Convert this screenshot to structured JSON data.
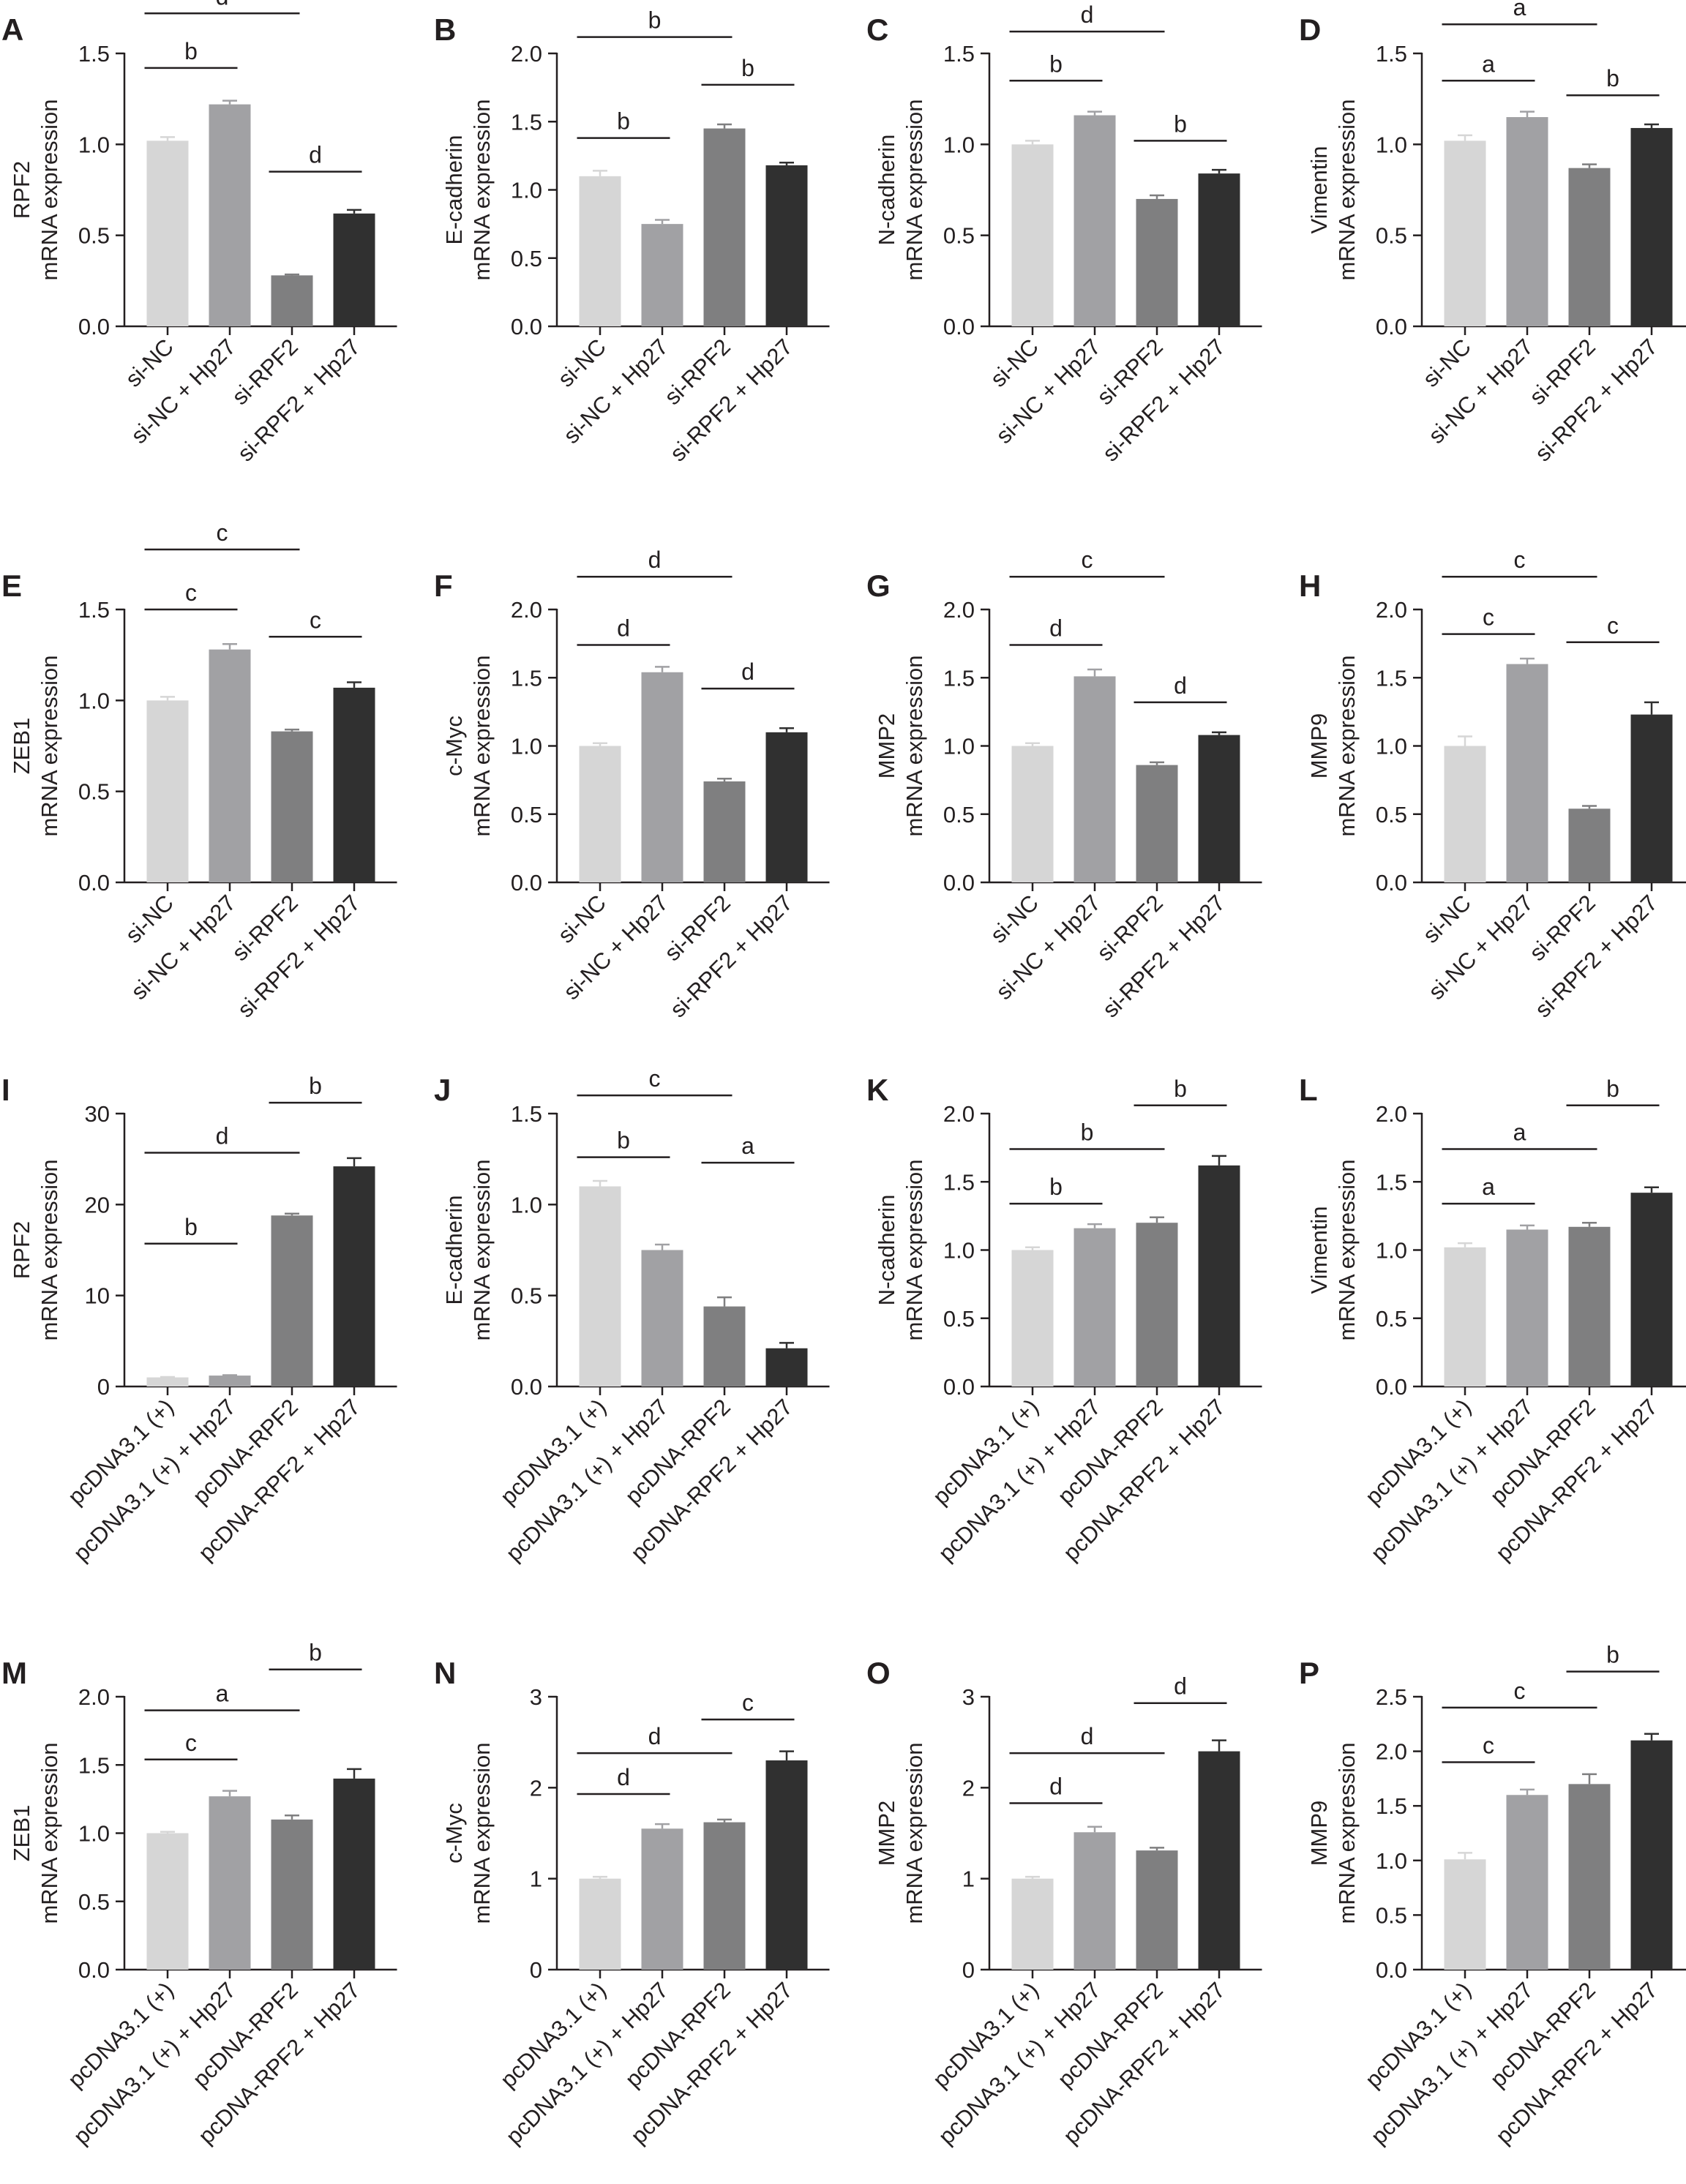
{
  "figure": {
    "colors": [
      "#d6d6d6",
      "#a1a1a4",
      "#7f7f80",
      "#303030"
    ],
    "axis_color": "#231f20"
  },
  "chart_data": [
    {
      "panel": "A",
      "type": "bar",
      "ylabel": [
        "RPF2",
        "mRNA expression"
      ],
      "ylim": [
        0,
        1.5
      ],
      "ticks": [
        0,
        0.5,
        1,
        1.5
      ],
      "tick_labels": [
        "0.0",
        "0.5",
        "1.0",
        "1.5"
      ],
      "categories": [
        "si-NC",
        "si-NC + Hp27",
        "si-RPF2",
        "si-RPF2 + Hp27"
      ],
      "values": [
        1.02,
        1.22,
        0.28,
        0.62
      ],
      "errors": [
        0.02,
        0.02,
        0.005,
        0.02
      ],
      "significance": [
        {
          "from": 0,
          "to": 1,
          "label": "b",
          "y": 1.42
        },
        {
          "from": 0,
          "to": 2,
          "label": "d",
          "y": 1.72
        },
        {
          "from": 2,
          "to": 3,
          "label": "d",
          "y": 0.85
        }
      ]
    },
    {
      "panel": "B",
      "type": "bar",
      "ylabel": [
        "E-cadherin",
        "mRNA expression"
      ],
      "ylim": [
        0,
        2.0
      ],
      "ticks": [
        0,
        0.5,
        1,
        1.5,
        2
      ],
      "tick_labels": [
        "0.0",
        "0.5",
        "1.0",
        "1.5",
        "2.0"
      ],
      "categories": [
        "si-NC",
        "si-NC + Hp27",
        "si-RPF2",
        "si-RPF2 + Hp27"
      ],
      "values": [
        1.1,
        0.75,
        1.45,
        1.18
      ],
      "errors": [
        0.04,
        0.03,
        0.03,
        0.02
      ],
      "significance": [
        {
          "from": 0,
          "to": 1,
          "label": "b",
          "y": 1.38
        },
        {
          "from": 0,
          "to": 2,
          "label": "b",
          "y": 2.12
        },
        {
          "from": 2,
          "to": 3,
          "label": "b",
          "y": 1.77
        }
      ]
    },
    {
      "panel": "C",
      "type": "bar",
      "ylabel": [
        "N-cadherin",
        "mRNA expression"
      ],
      "ylim": [
        0,
        1.5
      ],
      "ticks": [
        0,
        0.5,
        1,
        1.5
      ],
      "tick_labels": [
        "0.0",
        "0.5",
        "1.0",
        "1.5"
      ],
      "categories": [
        "si-NC",
        "si-NC + Hp27",
        "si-RPF2",
        "si-RPF2 + Hp27"
      ],
      "values": [
        1.0,
        1.16,
        0.7,
        0.84
      ],
      "errors": [
        0.02,
        0.02,
        0.02,
        0.02
      ],
      "significance": [
        {
          "from": 0,
          "to": 1,
          "label": "b",
          "y": 1.35
        },
        {
          "from": 0,
          "to": 2,
          "label": "d",
          "y": 1.62
        },
        {
          "from": 2,
          "to": 3,
          "label": "b",
          "y": 1.02
        }
      ]
    },
    {
      "panel": "D",
      "type": "bar",
      "ylabel": [
        "Vimentin",
        "mRNA expression"
      ],
      "ylim": [
        0,
        1.5
      ],
      "ticks": [
        0,
        0.5,
        1,
        1.5
      ],
      "tick_labels": [
        "0.0",
        "0.5",
        "1.0",
        "1.5"
      ],
      "categories": [
        "si-NC",
        "si-NC + Hp27",
        "si-RPF2",
        "si-RPF2 + Hp27"
      ],
      "values": [
        1.02,
        1.15,
        0.87,
        1.09
      ],
      "errors": [
        0.03,
        0.03,
        0.02,
        0.02
      ],
      "significance": [
        {
          "from": 0,
          "to": 1,
          "label": "a",
          "y": 1.35
        },
        {
          "from": 0,
          "to": 2,
          "label": "a",
          "y": 1.66
        },
        {
          "from": 2,
          "to": 3,
          "label": "b",
          "y": 1.27
        }
      ]
    },
    {
      "panel": "E",
      "type": "bar",
      "ylabel": [
        "ZEB1",
        "mRNA expression"
      ],
      "ylim": [
        0,
        1.5
      ],
      "ticks": [
        0,
        0.5,
        1,
        1.5
      ],
      "tick_labels": [
        "0.0",
        "0.5",
        "1.0",
        "1.5"
      ],
      "categories": [
        "si-NC",
        "si-NC + Hp27",
        "si-RPF2",
        "si-RPF2 + Hp27"
      ],
      "values": [
        1.0,
        1.28,
        0.83,
        1.07
      ],
      "errors": [
        0.02,
        0.03,
        0.01,
        0.03
      ],
      "significance": [
        {
          "from": 0,
          "to": 1,
          "label": "c",
          "y": 1.5
        },
        {
          "from": 0,
          "to": 2,
          "label": "c",
          "y": 1.83
        },
        {
          "from": 2,
          "to": 3,
          "label": "c",
          "y": 1.35
        }
      ]
    },
    {
      "panel": "F",
      "type": "bar",
      "ylabel": [
        "c-Myc",
        "mRNA expression"
      ],
      "ylim": [
        0,
        2.0
      ],
      "ticks": [
        0,
        0.5,
        1,
        1.5,
        2
      ],
      "tick_labels": [
        "0.0",
        "0.5",
        "1.0",
        "1.5",
        "2.0"
      ],
      "categories": [
        "si-NC",
        "si-NC + Hp27",
        "si-RPF2",
        "si-RPF2 + Hp27"
      ],
      "values": [
        1.0,
        1.54,
        0.74,
        1.1
      ],
      "errors": [
        0.02,
        0.04,
        0.02,
        0.03
      ],
      "significance": [
        {
          "from": 0,
          "to": 1,
          "label": "d",
          "y": 1.74
        },
        {
          "from": 0,
          "to": 2,
          "label": "d",
          "y": 2.24
        },
        {
          "from": 2,
          "to": 3,
          "label": "d",
          "y": 1.42
        }
      ]
    },
    {
      "panel": "G",
      "type": "bar",
      "ylabel": [
        "MMP2",
        "mRNA expression"
      ],
      "ylim": [
        0,
        2.0
      ],
      "ticks": [
        0,
        0.5,
        1,
        1.5,
        2
      ],
      "tick_labels": [
        "0.0",
        "0.5",
        "1.0",
        "1.5",
        "2.0"
      ],
      "categories": [
        "si-NC",
        "si-NC + Hp27",
        "si-RPF2",
        "si-RPF2 + Hp27"
      ],
      "values": [
        1.0,
        1.51,
        0.86,
        1.08
      ],
      "errors": [
        0.02,
        0.05,
        0.02,
        0.02
      ],
      "significance": [
        {
          "from": 0,
          "to": 1,
          "label": "d",
          "y": 1.74
        },
        {
          "from": 0,
          "to": 2,
          "label": "c",
          "y": 2.24
        },
        {
          "from": 2,
          "to": 3,
          "label": "d",
          "y": 1.32
        }
      ]
    },
    {
      "panel": "H",
      "type": "bar",
      "ylabel": [
        "MMP9",
        "mRNA expression"
      ],
      "ylim": [
        0,
        2.0
      ],
      "ticks": [
        0,
        0.5,
        1,
        1.5,
        2
      ],
      "tick_labels": [
        "0.0",
        "0.5",
        "1.0",
        "1.5",
        "2.0"
      ],
      "categories": [
        "si-NC",
        "si-NC + Hp27",
        "si-RPF2",
        "si-RPF2 + Hp27"
      ],
      "values": [
        1.0,
        1.6,
        0.54,
        1.23
      ],
      "errors": [
        0.07,
        0.04,
        0.02,
        0.09
      ],
      "significance": [
        {
          "from": 0,
          "to": 1,
          "label": "c",
          "y": 1.82
        },
        {
          "from": 0,
          "to": 2,
          "label": "c",
          "y": 2.24
        },
        {
          "from": 2,
          "to": 3,
          "label": "c",
          "y": 1.76
        }
      ]
    },
    {
      "panel": "I",
      "type": "bar",
      "ylabel": [
        "RPF2",
        "mRNA expression"
      ],
      "ylim": [
        0,
        30
      ],
      "ticks": [
        0,
        10,
        20,
        30
      ],
      "tick_labels": [
        "0",
        "10",
        "20",
        "30"
      ],
      "categories": [
        "pcDNA3.1 (+)",
        "pcDNA3.1 (+) + Hp27",
        "pcDNA-RPF2",
        "pcDNA-RPF2 + Hp27"
      ],
      "values": [
        1.0,
        1.2,
        18.8,
        24.2
      ],
      "errors": [
        0.05,
        0.05,
        0.2,
        0.9
      ],
      "significance": [
        {
          "from": 0,
          "to": 1,
          "label": "b",
          "y": 15.7
        },
        {
          "from": 0,
          "to": 2,
          "label": "d",
          "y": 25.7
        },
        {
          "from": 2,
          "to": 3,
          "label": "b",
          "y": 31.2
        }
      ]
    },
    {
      "panel": "J",
      "type": "bar",
      "ylabel": [
        "E-cadherin",
        "mRNA expression"
      ],
      "ylim": [
        0,
        1.5
      ],
      "ticks": [
        0,
        0.5,
        1,
        1.5
      ],
      "tick_labels": [
        "0.0",
        "0.5",
        "1.0",
        "1.5"
      ],
      "categories": [
        "pcDNA3.1 (+)",
        "pcDNA3.1 (+) + Hp27",
        "pcDNA-RPF2",
        "pcDNA-RPF2 + Hp27"
      ],
      "values": [
        1.1,
        0.75,
        0.44,
        0.21
      ],
      "errors": [
        0.03,
        0.03,
        0.05,
        0.03
      ],
      "significance": [
        {
          "from": 0,
          "to": 1,
          "label": "b",
          "y": 1.26
        },
        {
          "from": 0,
          "to": 2,
          "label": "c",
          "y": 1.6
        },
        {
          "from": 2,
          "to": 3,
          "label": "a",
          "y": 1.23
        }
      ]
    },
    {
      "panel": "K",
      "type": "bar",
      "ylabel": [
        "N-cadherin",
        "mRNA expression"
      ],
      "ylim": [
        0,
        2.0
      ],
      "ticks": [
        0,
        0.5,
        1,
        1.5,
        2
      ],
      "tick_labels": [
        "0.0",
        "0.5",
        "1.0",
        "1.5",
        "2.0"
      ],
      "categories": [
        "pcDNA3.1 (+)",
        "pcDNA3.1 (+) + Hp27",
        "pcDNA-RPF2",
        "pcDNA-RPF2 + Hp27"
      ],
      "values": [
        1.0,
        1.16,
        1.2,
        1.62
      ],
      "errors": [
        0.02,
        0.03,
        0.04,
        0.07
      ],
      "significance": [
        {
          "from": 0,
          "to": 1,
          "label": "b",
          "y": 1.34
        },
        {
          "from": 0,
          "to": 2,
          "label": "b",
          "y": 1.74
        },
        {
          "from": 2,
          "to": 3,
          "label": "b",
          "y": 2.06
        }
      ]
    },
    {
      "panel": "L",
      "type": "bar",
      "ylabel": [
        "Vimentin",
        "mRNA expression"
      ],
      "ylim": [
        0,
        2.0
      ],
      "ticks": [
        0,
        0.5,
        1,
        1.5,
        2
      ],
      "tick_labels": [
        "0.0",
        "0.5",
        "1.0",
        "1.5",
        "2.0"
      ],
      "categories": [
        "pcDNA3.1 (+)",
        "pcDNA3.1 (+) + Hp27",
        "pcDNA-RPF2",
        "pcDNA-RPF2 + Hp27"
      ],
      "values": [
        1.02,
        1.15,
        1.17,
        1.42
      ],
      "errors": [
        0.03,
        0.03,
        0.03,
        0.04
      ],
      "significance": [
        {
          "from": 0,
          "to": 1,
          "label": "a",
          "y": 1.34
        },
        {
          "from": 0,
          "to": 2,
          "label": "a",
          "y": 1.74
        },
        {
          "from": 2,
          "to": 3,
          "label": "b",
          "y": 2.06
        }
      ]
    },
    {
      "panel": "M",
      "type": "bar",
      "ylabel": [
        "ZEB1",
        "mRNA expression"
      ],
      "ylim": [
        0,
        2.0
      ],
      "ticks": [
        0,
        0.5,
        1,
        1.5,
        2
      ],
      "tick_labels": [
        "0.0",
        "0.5",
        "1.0",
        "1.5",
        "2.0"
      ],
      "categories": [
        "pcDNA3.1 (+)",
        "pcDNA3.1 (+) + Hp27",
        "pcDNA-RPF2",
        "pcDNA-RPF2 + Hp27"
      ],
      "values": [
        1.0,
        1.27,
        1.1,
        1.4
      ],
      "errors": [
        0.01,
        0.04,
        0.03,
        0.07
      ],
      "significance": [
        {
          "from": 0,
          "to": 1,
          "label": "c",
          "y": 1.54
        },
        {
          "from": 0,
          "to": 2,
          "label": "a",
          "y": 1.9
        },
        {
          "from": 2,
          "to": 3,
          "label": "b",
          "y": 2.2
        }
      ]
    },
    {
      "panel": "N",
      "type": "bar",
      "ylabel": [
        "c-Myc",
        "mRNA expression"
      ],
      "ylim": [
        0,
        3
      ],
      "ticks": [
        0,
        1,
        2,
        3
      ],
      "tick_labels": [
        "0",
        "1",
        "2",
        "3"
      ],
      "categories": [
        "pcDNA3.1 (+)",
        "pcDNA3.1 (+) + Hp27",
        "pcDNA-RPF2",
        "pcDNA-RPF2 + Hp27"
      ],
      "values": [
        1.0,
        1.55,
        1.62,
        2.3
      ],
      "errors": [
        0.02,
        0.05,
        0.03,
        0.1
      ],
      "significance": [
        {
          "from": 0,
          "to": 1,
          "label": "d",
          "y": 1.93
        },
        {
          "from": 0,
          "to": 2,
          "label": "d",
          "y": 2.38
        },
        {
          "from": 2,
          "to": 3,
          "label": "c",
          "y": 2.75
        }
      ]
    },
    {
      "panel": "O",
      "type": "bar",
      "ylabel": [
        "MMP2",
        "mRNA expression"
      ],
      "ylim": [
        0,
        3
      ],
      "ticks": [
        0,
        1,
        2,
        3
      ],
      "tick_labels": [
        "0",
        "1",
        "2",
        "3"
      ],
      "categories": [
        "pcDNA3.1 (+)",
        "pcDNA3.1 (+) + Hp27",
        "pcDNA-RPF2",
        "pcDNA-RPF2 + Hp27"
      ],
      "values": [
        1.0,
        1.51,
        1.31,
        2.4
      ],
      "errors": [
        0.02,
        0.06,
        0.03,
        0.12
      ],
      "significance": [
        {
          "from": 0,
          "to": 1,
          "label": "d",
          "y": 1.83
        },
        {
          "from": 0,
          "to": 2,
          "label": "d",
          "y": 2.38
        },
        {
          "from": 2,
          "to": 3,
          "label": "d",
          "y": 2.93
        }
      ]
    },
    {
      "panel": "P",
      "type": "bar",
      "ylabel": [
        "MMP9",
        "mRNA expression"
      ],
      "ylim": [
        0,
        2.5
      ],
      "ticks": [
        0,
        0.5,
        1,
        1.5,
        2,
        2.5
      ],
      "tick_labels": [
        "0.0",
        "0.5",
        "1.0",
        "1.5",
        "2.0",
        "2.5"
      ],
      "categories": [
        "pcDNA3.1 (+)",
        "pcDNA3.1 (+) + Hp27",
        "pcDNA-RPF2",
        "pcDNA-RPF2 + Hp27"
      ],
      "values": [
        1.01,
        1.6,
        1.7,
        2.1
      ],
      "errors": [
        0.06,
        0.05,
        0.09,
        0.06
      ],
      "significance": [
        {
          "from": 0,
          "to": 1,
          "label": "c",
          "y": 1.9
        },
        {
          "from": 0,
          "to": 2,
          "label": "c",
          "y": 2.4
        },
        {
          "from": 2,
          "to": 3,
          "label": "b",
          "y": 2.73
        }
      ]
    }
  ]
}
